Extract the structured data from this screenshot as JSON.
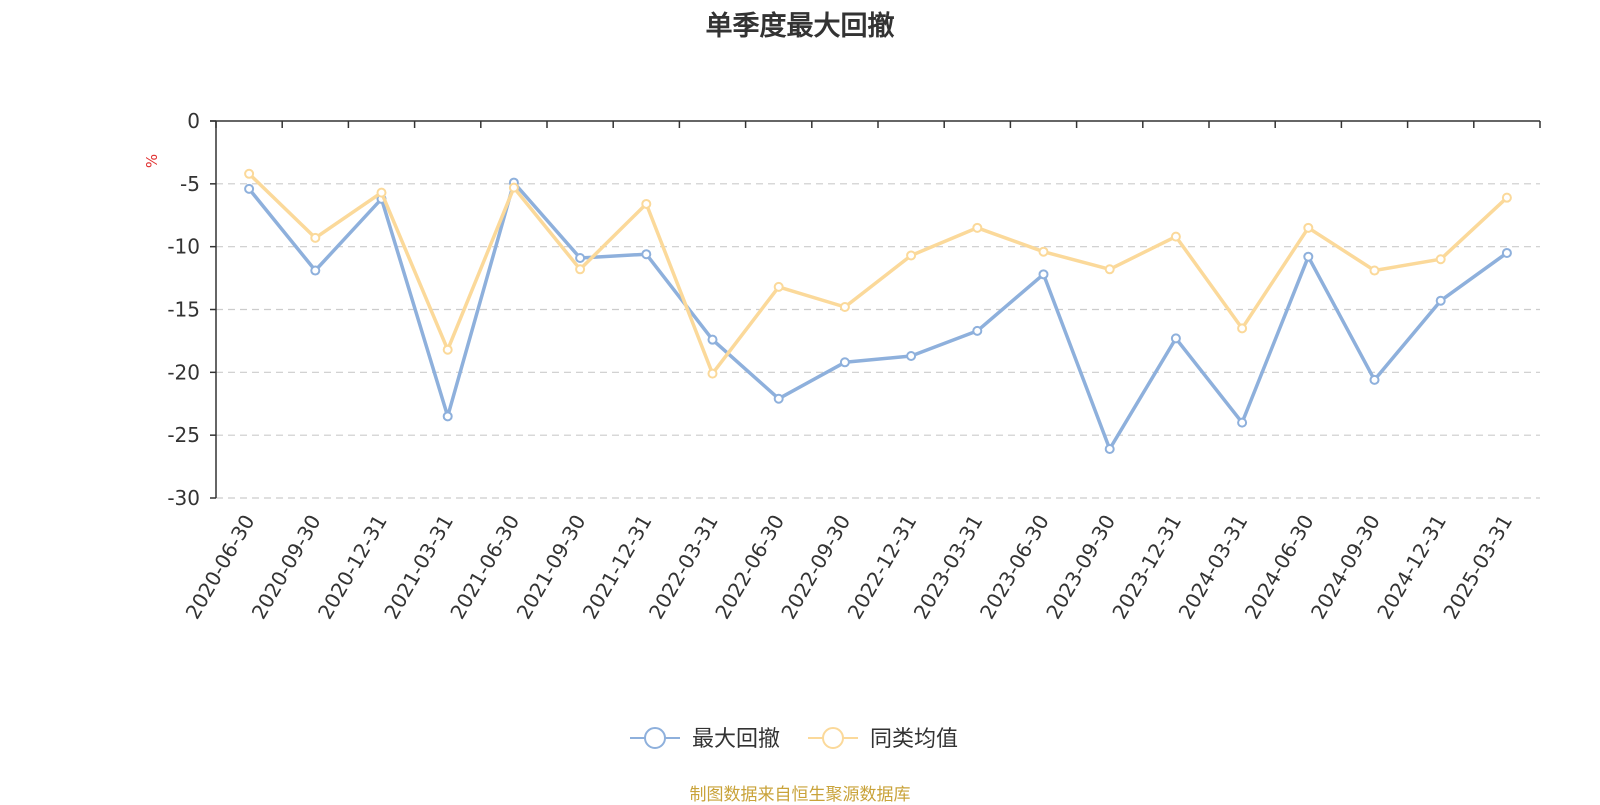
{
  "chart_data": {
    "type": "line",
    "title": "单季度最大回撤",
    "ylabel": "%",
    "xlabel": "",
    "ylim": [
      -30,
      0
    ],
    "yticks": [
      0,
      -5,
      -10,
      -15,
      -20,
      -25,
      -30
    ],
    "grid": true,
    "legend_position": "bottom",
    "categories": [
      "2020-06-30",
      "2020-09-30",
      "2020-12-31",
      "2021-03-31",
      "2021-06-30",
      "2021-09-30",
      "2021-12-31",
      "2022-03-31",
      "2022-06-30",
      "2022-09-30",
      "2022-12-31",
      "2023-03-31",
      "2023-06-30",
      "2023-09-30",
      "2023-12-31",
      "2024-03-31",
      "2024-06-30",
      "2024-09-30",
      "2024-12-31",
      "2025-03-31"
    ],
    "series": [
      {
        "name": "最大回撤",
        "color": "#8eb0dc",
        "values": [
          -5.4,
          -11.9,
          -6.2,
          -23.5,
          -4.9,
          -10.9,
          -10.6,
          -17.4,
          -22.1,
          -19.2,
          -18.7,
          -16.7,
          -12.2,
          -26.1,
          -17.3,
          -24.0,
          -10.8,
          -20.6,
          -14.3,
          -10.5
        ]
      },
      {
        "name": "同类均值",
        "color": "#fbd99a",
        "values": [
          -4.2,
          -9.3,
          -5.7,
          -18.2,
          -5.3,
          -11.8,
          -6.6,
          -20.1,
          -13.2,
          -14.8,
          -10.7,
          -8.5,
          -10.4,
          -11.8,
          -9.2,
          -16.5,
          -8.5,
          -11.9,
          -11.0,
          -6.1
        ]
      }
    ]
  },
  "footer": {
    "source": "制图数据来自恒生聚源数据库",
    "color": "#c9a33a"
  }
}
